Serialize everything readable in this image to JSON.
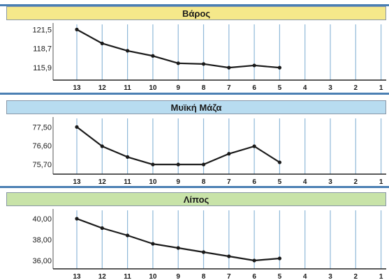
{
  "colors": {
    "panel_bg": "#ffffff",
    "title_fills": [
      "#f5e88a",
      "#b8dcf0",
      "#c8e3a8"
    ],
    "rule": "#4a7fb3",
    "gridline": "#8fb8d8",
    "line": "#1a1a1a"
  },
  "chart_data": [
    {
      "type": "line",
      "title": "Βάρος",
      "x": [
        "13",
        "12",
        "11",
        "10",
        "9",
        "8",
        "7",
        "6",
        "5",
        "4",
        "3",
        "2",
        "1"
      ],
      "ytick_labels": [
        "121,5",
        "118,7",
        "115,9"
      ],
      "ylim": [
        114.6,
        122.2
      ],
      "series": [
        {
          "values": [
            121.5,
            119.6,
            118.6,
            117.9,
            116.9,
            116.8,
            116.3,
            116.6,
            116.3,
            null,
            null,
            null,
            null
          ]
        }
      ],
      "grid": true
    },
    {
      "type": "line",
      "title": "Μυϊκή Μάζα",
      "x": [
        "13",
        "12",
        "11",
        "10",
        "9",
        "8",
        "7",
        "6",
        "5",
        "4",
        "3",
        "2",
        "1"
      ],
      "ytick_labels": [
        "77,50",
        "76,60",
        "75,70"
      ],
      "ylim": [
        75.3,
        77.9
      ],
      "series": [
        {
          "values": [
            77.5,
            76.6,
            76.1,
            75.75,
            75.75,
            75.75,
            76.25,
            76.6,
            75.85,
            null,
            null,
            null,
            null
          ]
        }
      ],
      "grid": true
    },
    {
      "type": "line",
      "title": "Λίπος",
      "x": [
        "13",
        "12",
        "11",
        "10",
        "9",
        "8",
        "7",
        "6",
        "5",
        "4",
        "3",
        "2",
        "1"
      ],
      "ytick_labels": [
        "40,00",
        "38,00",
        "36,00"
      ],
      "ylim": [
        35.2,
        40.8
      ],
      "series": [
        {
          "values": [
            40.0,
            39.1,
            38.4,
            37.6,
            37.2,
            36.8,
            36.4,
            36.0,
            36.2,
            null,
            null,
            null,
            null
          ]
        }
      ],
      "grid": true
    }
  ]
}
